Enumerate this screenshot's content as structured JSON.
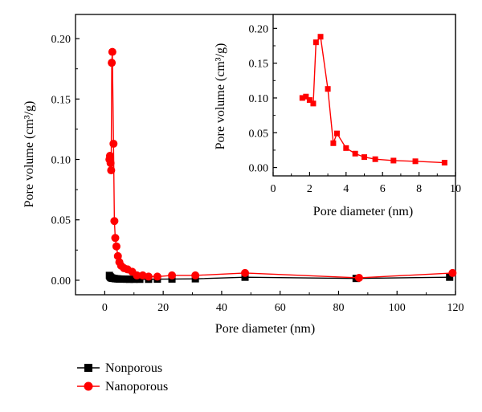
{
  "chart_data": [
    {
      "type": "line",
      "xlabel": "Pore diameter (nm)",
      "ylabel": "Pore volume (cm³/g)",
      "xlim": [
        -10,
        120
      ],
      "ylim": [
        -0.012,
        0.22
      ],
      "xticks": [
        0,
        20,
        40,
        60,
        80,
        100,
        120
      ],
      "yticks": [
        0.0,
        0.05,
        0.1,
        0.15,
        0.2
      ],
      "ytick_labels": [
        "0.00",
        "0.05",
        "0.10",
        "0.15",
        "0.20"
      ],
      "legend_position": "bottom-left",
      "series": [
        {
          "name": "Nonporous",
          "marker": "square",
          "color": "#000000",
          "x": [
            1.6,
            1.8,
            2.0,
            2.2,
            2.5,
            2.8,
            3.2,
            3.6,
            4.0,
            4.5,
            5.0,
            5.6,
            6.5,
            7.5,
            8.5,
            10,
            12,
            15,
            18,
            23,
            31,
            48,
            86,
            118
          ],
          "y": [
            0.004,
            0.003,
            0.0025,
            0.002,
            0.0018,
            0.0016,
            0.0015,
            0.0013,
            0.0012,
            0.0011,
            0.001,
            0.001,
            0.0009,
            0.0009,
            0.0008,
            0.0008,
            0.0008,
            0.0008,
            0.0009,
            0.001,
            0.0012,
            0.0025,
            0.0015,
            0.0025
          ]
        },
        {
          "name": "Nanoporous",
          "marker": "circle",
          "color": "#ff0000",
          "x": [
            1.6,
            1.8,
            2.0,
            2.2,
            2.4,
            2.6,
            3.0,
            3.3,
            3.6,
            4.0,
            4.5,
            5.0,
            5.6,
            6.6,
            7.8,
            9.4,
            11,
            13,
            15,
            18,
            23,
            31,
            48,
            87,
            119
          ],
          "y": [
            0.1,
            0.103,
            0.097,
            0.091,
            0.18,
            0.189,
            0.113,
            0.049,
            0.035,
            0.028,
            0.02,
            0.015,
            0.012,
            0.01,
            0.009,
            0.007,
            0.004,
            0.004,
            0.003,
            0.003,
            0.004,
            0.004,
            0.006,
            0.002,
            0.006
          ]
        }
      ]
    },
    {
      "type": "line",
      "xlabel": "Pore diameter (nm)",
      "ylabel": "Pore volume (cm³/g)",
      "xlim": [
        0,
        10
      ],
      "ylim": [
        -0.012,
        0.22
      ],
      "xticks": [
        0,
        2,
        4,
        6,
        8,
        10
      ],
      "yticks": [
        0.0,
        0.05,
        0.1,
        0.15,
        0.2
      ],
      "ytick_labels": [
        "0.00",
        "0.05",
        "0.10",
        "0.15",
        "0.20"
      ],
      "series": [
        {
          "marker": "square",
          "color": "#ff0000",
          "x": [
            1.6,
            1.8,
            2.0,
            2.2,
            2.35,
            2.6,
            3.0,
            3.3,
            3.5,
            4.0,
            4.5,
            5.0,
            5.6,
            6.6,
            7.8,
            9.4
          ],
          "y": [
            0.1,
            0.102,
            0.097,
            0.092,
            0.18,
            0.188,
            0.113,
            0.035,
            0.049,
            0.028,
            0.02,
            0.015,
            0.012,
            0.01,
            0.009,
            0.007
          ]
        }
      ]
    }
  ]
}
